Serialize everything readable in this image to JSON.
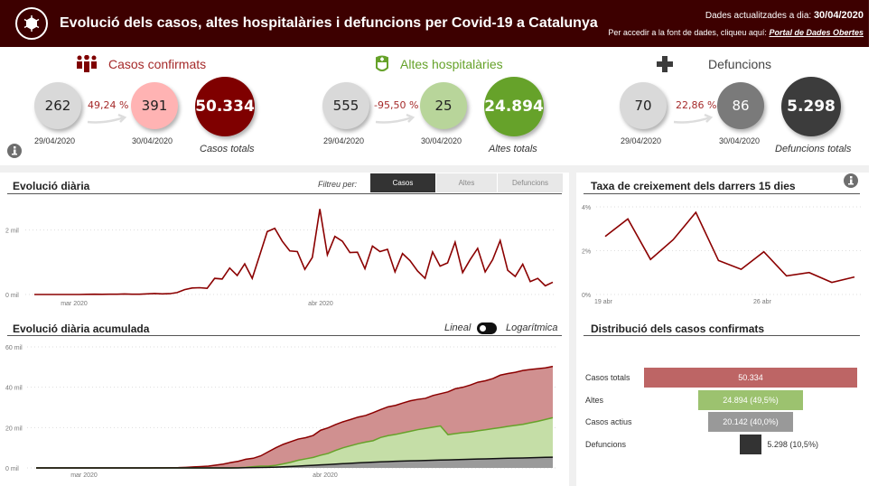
{
  "header": {
    "title": "Evolució dels casos, altes hospitalàries i defuncions per Covid-19 a Catalunya",
    "updated_label": "Dades actualitzades a dia:",
    "updated_date": "30/04/2020",
    "source_label": "Per accedir a la font de dades, cliqueu aquí:",
    "source_link": "Portal de Dades Obertes"
  },
  "kpis": [
    {
      "title": "Casos confirmats",
      "prev": "262",
      "prev_date": "29/04/2020",
      "change": "49,24 %",
      "curr": "391",
      "curr_date": "30/04/2020",
      "total": "50.334",
      "total_label": "Casos totals",
      "color": "#7f0000",
      "curr_color": "#ffb3b3",
      "title_color": "#a52a2a"
    },
    {
      "title": "Altes hospitalàries",
      "prev": "555",
      "prev_date": "29/04/2020",
      "change": "-95,50 %",
      "curr": "25",
      "curr_date": "30/04/2020",
      "total": "24.894",
      "total_label": "Altes totals",
      "color": "#66a22a",
      "curr_color": "#b8d59a",
      "title_color": "#66a22a"
    },
    {
      "title": "Defuncions",
      "prev": "70",
      "prev_date": "29/04/2020",
      "change": "22,86 %",
      "curr": "86",
      "curr_date": "30/04/2020",
      "total": "5.298",
      "total_label": "Defuncions totals",
      "color": "#3c3c3c",
      "curr_color": "#7a7a7a",
      "title_color": "#444444"
    }
  ],
  "daily": {
    "title": "Evolució diària",
    "filter_label": "Filtreu per:",
    "filters": [
      "Casos",
      "Altes",
      "Defuncions"
    ],
    "active_filter": "Casos"
  },
  "cumulative": {
    "title": "Evolució diària acumulada",
    "toggle_left": "Lineal",
    "toggle_right": "Logarítmica"
  },
  "growth": {
    "title": "Taxa de creixement dels darrers 15 dies"
  },
  "distribution": {
    "title": "Distribució dels casos confirmats"
  },
  "chart_data": [
    {
      "type": "line",
      "name": "daily",
      "ylabel": "",
      "yticks": [
        "0 mil",
        "2 mil"
      ],
      "xticks": [
        "mar 2020",
        "abr 2020"
      ],
      "ylim": [
        0,
        2800
      ],
      "color": "#8b0000",
      "values": [
        0,
        0,
        0,
        0,
        0,
        0,
        0,
        5,
        10,
        5,
        10,
        10,
        15,
        10,
        10,
        20,
        30,
        20,
        25,
        60,
        150,
        200,
        210,
        190,
        500,
        480,
        820,
        590,
        950,
        500,
        1220,
        1950,
        2050,
        1650,
        1350,
        1330,
        780,
        1150,
        2650,
        1230,
        1800,
        1650,
        1300,
        1310,
        800,
        1500,
        1330,
        1400,
        700,
        1270,
        1050,
        730,
        500,
        1320,
        880,
        980,
        1620,
        680,
        1080,
        1430,
        700,
        1080,
        1670,
        750,
        560,
        940,
        400,
        500,
        270,
        380
      ]
    },
    {
      "type": "line",
      "name": "growth",
      "yticks": [
        "0%",
        "2%",
        "4%"
      ],
      "xticks": [
        "19 abr",
        "26 abr"
      ],
      "ylim": [
        0,
        4
      ],
      "color": "#8b0000",
      "values": [
        2.65,
        3.45,
        1.6,
        2.5,
        3.75,
        1.55,
        1.15,
        1.95,
        0.85,
        1.0,
        0.55,
        0.8
      ]
    },
    {
      "type": "area",
      "name": "cumulative",
      "yticks": [
        "0 mil",
        "20 mil",
        "40 mil",
        "60 mil"
      ],
      "xticks": [
        "mar 2020",
        "abr 2020"
      ],
      "ylim": [
        0,
        60000
      ],
      "series": [
        {
          "name": "Casos",
          "color": "#d09090",
          "line": "#8b0000",
          "values": [
            0,
            0,
            0,
            0,
            0,
            0,
            0,
            0,
            0,
            0,
            0,
            0,
            0,
            0,
            0,
            0,
            50,
            80,
            100,
            150,
            300,
            500,
            700,
            900,
            1400,
            1900,
            2700,
            3300,
            4300,
            4800,
            6000,
            8000,
            10000,
            11700,
            13000,
            14300,
            15000,
            16100,
            18700,
            19900,
            21500,
            22900,
            24000,
            25200,
            26000,
            27400,
            28900,
            30300,
            31000,
            32200,
            33300,
            34000,
            34500,
            35900,
            36800,
            37700,
            39300,
            40000,
            41100,
            42500,
            43200,
            44300,
            46000,
            46800,
            47400,
            48300,
            48800,
            49200,
            49600,
            50334
          ]
        },
        {
          "name": "Altes",
          "color": "#c5dea7",
          "line": "#66a22a",
          "values": [
            0,
            0,
            0,
            0,
            0,
            0,
            0,
            0,
            0,
            0,
            0,
            0,
            0,
            0,
            0,
            0,
            0,
            0,
            0,
            0,
            0,
            0,
            0,
            0,
            0,
            0,
            0,
            100,
            300,
            600,
            900,
            900,
            1300,
            2000,
            2800,
            3800,
            4500,
            5200,
            6300,
            7200,
            8700,
            10000,
            11000,
            12000,
            12800,
            13500,
            15100,
            16000,
            16600,
            17400,
            18200,
            19000,
            19600,
            20200,
            20800,
            16500,
            17000,
            17500,
            17800,
            18400,
            18900,
            19500,
            20000,
            20600,
            21100,
            21600,
            22400,
            23100,
            24000,
            24894
          ]
        },
        {
          "name": "Defuncions",
          "color": "#9a9a9a",
          "line": "#111111",
          "values": [
            0,
            0,
            0,
            0,
            0,
            0,
            0,
            0,
            0,
            0,
            0,
            0,
            0,
            0,
            0,
            0,
            0,
            0,
            0,
            0,
            0,
            0,
            0,
            0,
            0,
            0,
            0,
            0,
            100,
            150,
            200,
            300,
            400,
            550,
            700,
            900,
            1100,
            1300,
            1500,
            1700,
            1900,
            2100,
            2300,
            2500,
            2700,
            2850,
            3000,
            3150,
            3300,
            3400,
            3500,
            3600,
            3700,
            3800,
            3900,
            4000,
            4100,
            4200,
            4300,
            4400,
            4500,
            4600,
            4700,
            4800,
            4850,
            4950,
            5050,
            5150,
            5250,
            5298
          ]
        }
      ]
    },
    {
      "type": "bar",
      "name": "distribution",
      "categories": [
        "Casos totals",
        "Altes",
        "Casos actius",
        "Defuncions"
      ],
      "values": [
        50334,
        24894,
        20142,
        5298
      ],
      "labels": [
        "50.334",
        "24.894 (49,5%)",
        "20.142 (40,0%)",
        "5.298 (10,5%)"
      ],
      "colors": [
        "#bd6565",
        "#9cc26f",
        "#999999",
        "#333333"
      ]
    }
  ]
}
